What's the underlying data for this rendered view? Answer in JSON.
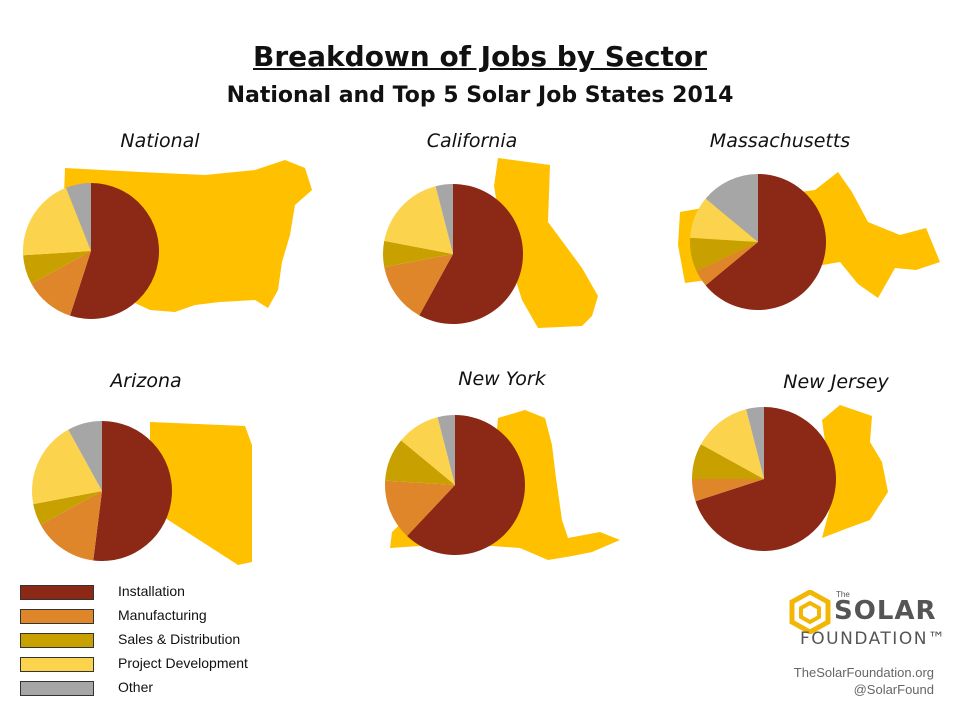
{
  "title": "Breakdown of Jobs by Sector",
  "subtitle": "National and Top 5 Solar Job States 2014",
  "colors": {
    "map": "#FFC000",
    "Installation": "#8B2816",
    "Manufacturing": "#E0862A",
    "Sales & Distribution": "#C8A000",
    "Project Development": "#FCD34D",
    "Other": "#A6A6A6"
  },
  "legend": [
    "Installation",
    "Manufacturing",
    "Sales & Distribution",
    "Project Development",
    "Other"
  ],
  "logo": {
    "the": "The",
    "solar": "SOLAR",
    "foundation": "FOUNDATION™"
  },
  "footer": {
    "url": "TheSolarFoundation.org",
    "handle": "@SolarFound"
  },
  "chart_data": [
    {
      "type": "pie",
      "title": "National",
      "categories": [
        "Installation",
        "Manufacturing",
        "Sales & Distribution",
        "Project Development",
        "Other"
      ],
      "values": [
        55,
        12,
        7,
        20,
        6
      ]
    },
    {
      "type": "pie",
      "title": "California",
      "categories": [
        "Installation",
        "Manufacturing",
        "Sales & Distribution",
        "Project Development",
        "Other"
      ],
      "values": [
        58,
        14,
        6,
        18,
        4
      ]
    },
    {
      "type": "pie",
      "title": "Massachusetts",
      "categories": [
        "Installation",
        "Manufacturing",
        "Sales & Distribution",
        "Project Development",
        "Other"
      ],
      "values": [
        64,
        4,
        8,
        10,
        14
      ]
    },
    {
      "type": "pie",
      "title": "Arizona",
      "categories": [
        "Installation",
        "Manufacturing",
        "Sales & Distribution",
        "Project Development",
        "Other"
      ],
      "values": [
        52,
        15,
        5,
        20,
        8
      ]
    },
    {
      "type": "pie",
      "title": "New York",
      "categories": [
        "Installation",
        "Manufacturing",
        "Sales & Distribution",
        "Project Development",
        "Other"
      ],
      "values": [
        62,
        14,
        10,
        10,
        4
      ]
    },
    {
      "type": "pie",
      "title": "New Jersey",
      "categories": [
        "Installation",
        "Manufacturing",
        "Sales & Distribution",
        "Project Development",
        "Other"
      ],
      "values": [
        70,
        5,
        8,
        13,
        4
      ]
    }
  ]
}
